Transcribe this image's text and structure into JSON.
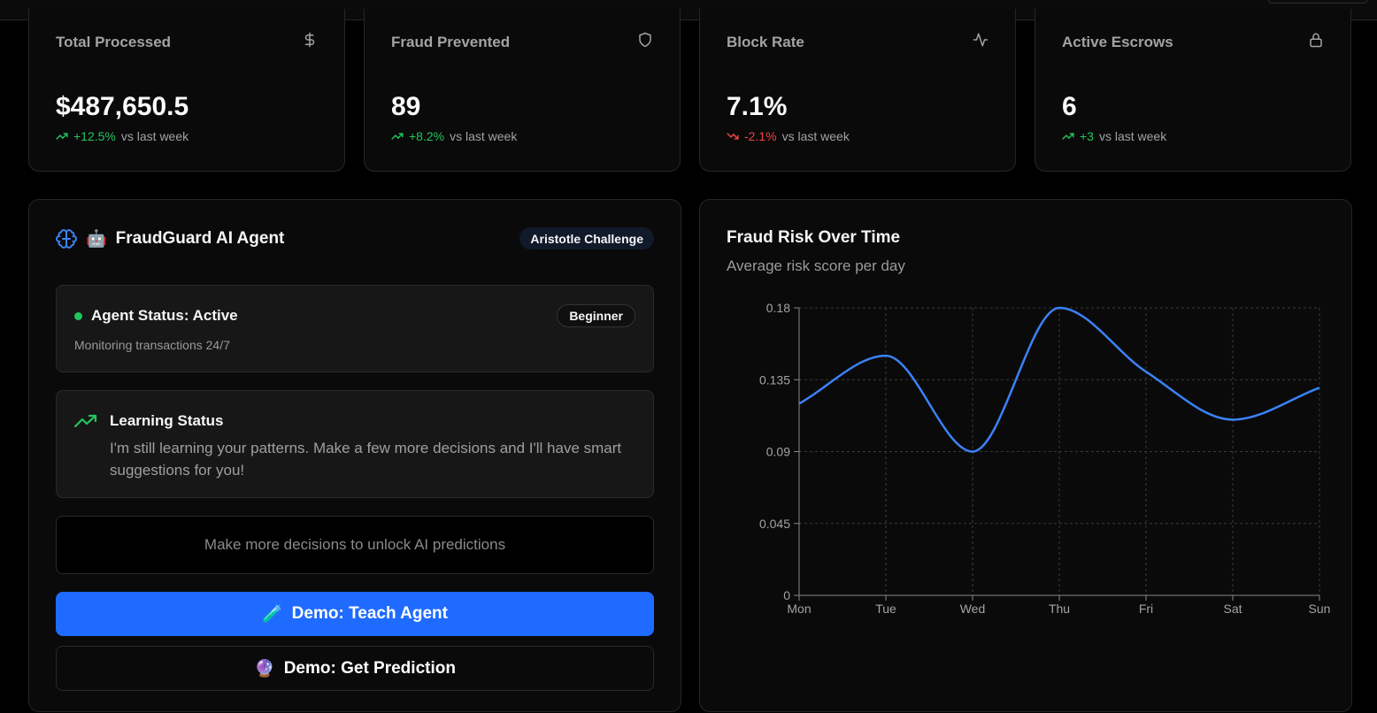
{
  "stats": [
    {
      "title": "Total Processed",
      "icon": "dollar-icon",
      "value": "$487,650.5",
      "change": "+12.5%",
      "trend": "up",
      "suffix": "vs last week"
    },
    {
      "title": "Fraud Prevented",
      "icon": "shield-icon",
      "value": "89",
      "change": "+8.2%",
      "trend": "up",
      "suffix": "vs last week"
    },
    {
      "title": "Block Rate",
      "icon": "activity-icon",
      "value": "7.1%",
      "change": "-2.1%",
      "trend": "down",
      "suffix": "vs last week"
    },
    {
      "title": "Active Escrows",
      "icon": "lock-icon",
      "value": "6",
      "change": "+3",
      "trend": "up",
      "suffix": "vs last week"
    }
  ],
  "agent": {
    "title": "FraudGuard AI Agent",
    "badge": "Aristotle Challenge",
    "status_title": "Agent Status: Active",
    "status_sub": "Monitoring transactions 24/7",
    "level": "Beginner",
    "learning_title": "Learning Status",
    "learning_text": "I'm still learning your patterns. Make a few more decisions and I'll have smart suggestions for you!",
    "unlock_text": "Make more decisions to unlock AI predictions",
    "teach_button": "Demo: Teach Agent",
    "teach_emoji": "🧪",
    "predict_button": "Demo: Get Prediction",
    "predict_emoji": "🔮",
    "robot_emoji": "🤖"
  },
  "colors": {
    "accent": "#1f6bff",
    "positive": "#22c55e",
    "negative": "#ef4444",
    "line": "#3b82f6"
  },
  "chart_data": {
    "type": "line",
    "title": "Fraud Risk Over Time",
    "subtitle": "Average risk score per day",
    "categories": [
      "Mon",
      "Tue",
      "Wed",
      "Thu",
      "Fri",
      "Sat",
      "Sun"
    ],
    "series": [
      {
        "values": [
          0.12,
          0.15,
          0.09,
          0.18,
          0.14,
          0.11,
          0.13
        ]
      }
    ],
    "yticks": [
      "0",
      "0.045",
      "0.09",
      "0.135",
      "0.18"
    ],
    "ylim": [
      0,
      0.18
    ],
    "grid": true
  }
}
